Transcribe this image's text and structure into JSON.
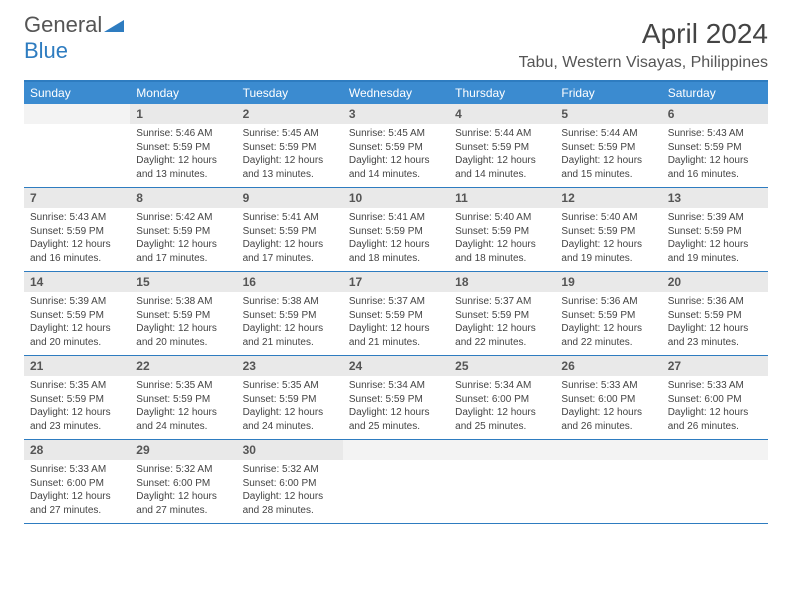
{
  "brand": {
    "general": "General",
    "blue": "Blue"
  },
  "title": "April 2024",
  "location": "Tabu, Western Visayas, Philippines",
  "colors": {
    "header_bg": "#3b8bd0",
    "header_text": "#ffffff",
    "rule": "#2e7cc0",
    "daynum_bg": "#e9e9e9",
    "daynum_text": "#555555",
    "body_text": "#444444",
    "page_bg": "#ffffff",
    "logo_gray": "#555555",
    "logo_blue": "#2e7cc0"
  },
  "layout": {
    "columns": 7,
    "weeks": 5,
    "start_offset": 1,
    "days_in_month": 30
  },
  "day_headers": [
    "Sunday",
    "Monday",
    "Tuesday",
    "Wednesday",
    "Thursday",
    "Friday",
    "Saturday"
  ],
  "days": [
    {
      "n": 1,
      "sr": "5:46 AM",
      "ss": "5:59 PM",
      "dl": "12 hours and 13 minutes."
    },
    {
      "n": 2,
      "sr": "5:45 AM",
      "ss": "5:59 PM",
      "dl": "12 hours and 13 minutes."
    },
    {
      "n": 3,
      "sr": "5:45 AM",
      "ss": "5:59 PM",
      "dl": "12 hours and 14 minutes."
    },
    {
      "n": 4,
      "sr": "5:44 AM",
      "ss": "5:59 PM",
      "dl": "12 hours and 14 minutes."
    },
    {
      "n": 5,
      "sr": "5:44 AM",
      "ss": "5:59 PM",
      "dl": "12 hours and 15 minutes."
    },
    {
      "n": 6,
      "sr": "5:43 AM",
      "ss": "5:59 PM",
      "dl": "12 hours and 16 minutes."
    },
    {
      "n": 7,
      "sr": "5:43 AM",
      "ss": "5:59 PM",
      "dl": "12 hours and 16 minutes."
    },
    {
      "n": 8,
      "sr": "5:42 AM",
      "ss": "5:59 PM",
      "dl": "12 hours and 17 minutes."
    },
    {
      "n": 9,
      "sr": "5:41 AM",
      "ss": "5:59 PM",
      "dl": "12 hours and 17 minutes."
    },
    {
      "n": 10,
      "sr": "5:41 AM",
      "ss": "5:59 PM",
      "dl": "12 hours and 18 minutes."
    },
    {
      "n": 11,
      "sr": "5:40 AM",
      "ss": "5:59 PM",
      "dl": "12 hours and 18 minutes."
    },
    {
      "n": 12,
      "sr": "5:40 AM",
      "ss": "5:59 PM",
      "dl": "12 hours and 19 minutes."
    },
    {
      "n": 13,
      "sr": "5:39 AM",
      "ss": "5:59 PM",
      "dl": "12 hours and 19 minutes."
    },
    {
      "n": 14,
      "sr": "5:39 AM",
      "ss": "5:59 PM",
      "dl": "12 hours and 20 minutes."
    },
    {
      "n": 15,
      "sr": "5:38 AM",
      "ss": "5:59 PM",
      "dl": "12 hours and 20 minutes."
    },
    {
      "n": 16,
      "sr": "5:38 AM",
      "ss": "5:59 PM",
      "dl": "12 hours and 21 minutes."
    },
    {
      "n": 17,
      "sr": "5:37 AM",
      "ss": "5:59 PM",
      "dl": "12 hours and 21 minutes."
    },
    {
      "n": 18,
      "sr": "5:37 AM",
      "ss": "5:59 PM",
      "dl": "12 hours and 22 minutes."
    },
    {
      "n": 19,
      "sr": "5:36 AM",
      "ss": "5:59 PM",
      "dl": "12 hours and 22 minutes."
    },
    {
      "n": 20,
      "sr": "5:36 AM",
      "ss": "5:59 PM",
      "dl": "12 hours and 23 minutes."
    },
    {
      "n": 21,
      "sr": "5:35 AM",
      "ss": "5:59 PM",
      "dl": "12 hours and 23 minutes."
    },
    {
      "n": 22,
      "sr": "5:35 AM",
      "ss": "5:59 PM",
      "dl": "12 hours and 24 minutes."
    },
    {
      "n": 23,
      "sr": "5:35 AM",
      "ss": "5:59 PM",
      "dl": "12 hours and 24 minutes."
    },
    {
      "n": 24,
      "sr": "5:34 AM",
      "ss": "5:59 PM",
      "dl": "12 hours and 25 minutes."
    },
    {
      "n": 25,
      "sr": "5:34 AM",
      "ss": "6:00 PM",
      "dl": "12 hours and 25 minutes."
    },
    {
      "n": 26,
      "sr": "5:33 AM",
      "ss": "6:00 PM",
      "dl": "12 hours and 26 minutes."
    },
    {
      "n": 27,
      "sr": "5:33 AM",
      "ss": "6:00 PM",
      "dl": "12 hours and 26 minutes."
    },
    {
      "n": 28,
      "sr": "5:33 AM",
      "ss": "6:00 PM",
      "dl": "12 hours and 27 minutes."
    },
    {
      "n": 29,
      "sr": "5:32 AM",
      "ss": "6:00 PM",
      "dl": "12 hours and 27 minutes."
    },
    {
      "n": 30,
      "sr": "5:32 AM",
      "ss": "6:00 PM",
      "dl": "12 hours and 28 minutes."
    }
  ],
  "labels": {
    "sunrise": "Sunrise:",
    "sunset": "Sunset:",
    "daylight": "Daylight:"
  }
}
